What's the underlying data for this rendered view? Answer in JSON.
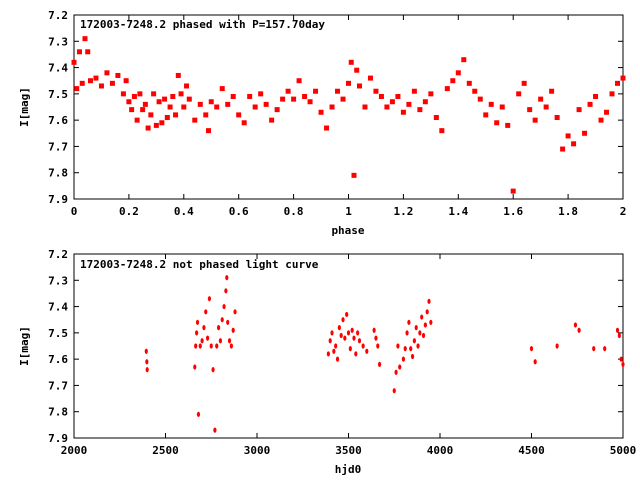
{
  "chart_data": [
    {
      "type": "scatter",
      "title": "172003-7248.2 phased with P=157.70day",
      "xlabel": "phase",
      "ylabel": "I[mag]",
      "xlim": [
        0,
        2
      ],
      "ylim": [
        7.2,
        7.9
      ],
      "y_inverted": true,
      "x_ticks": [
        "0",
        "0.2",
        "0.4",
        "0.6",
        "0.8",
        "1",
        "1.2",
        "1.4",
        "1.6",
        "1.8",
        "2"
      ],
      "y_ticks": [
        "7.2",
        "7.3",
        "7.4",
        "7.5",
        "7.6",
        "7.7",
        "7.8",
        "7.9"
      ],
      "color": "#ff0000",
      "grid": false,
      "points": [
        [
          0.0,
          7.38
        ],
        [
          0.01,
          7.48
        ],
        [
          0.02,
          7.34
        ],
        [
          0.03,
          7.46
        ],
        [
          0.04,
          7.29
        ],
        [
          0.05,
          7.34
        ],
        [
          0.06,
          7.45
        ],
        [
          0.08,
          7.44
        ],
        [
          0.1,
          7.47
        ],
        [
          0.12,
          7.42
        ],
        [
          0.14,
          7.46
        ],
        [
          0.16,
          7.43
        ],
        [
          0.18,
          7.5
        ],
        [
          0.19,
          7.45
        ],
        [
          0.2,
          7.53
        ],
        [
          0.21,
          7.56
        ],
        [
          0.22,
          7.51
        ],
        [
          0.23,
          7.6
        ],
        [
          0.24,
          7.5
        ],
        [
          0.25,
          7.56
        ],
        [
          0.26,
          7.54
        ],
        [
          0.27,
          7.63
        ],
        [
          0.28,
          7.58
        ],
        [
          0.29,
          7.5
        ],
        [
          0.3,
          7.62
        ],
        [
          0.31,
          7.53
        ],
        [
          0.32,
          7.61
        ],
        [
          0.33,
          7.52
        ],
        [
          0.34,
          7.59
        ],
        [
          0.35,
          7.55
        ],
        [
          0.36,
          7.51
        ],
        [
          0.37,
          7.58
        ],
        [
          0.38,
          7.43
        ],
        [
          0.39,
          7.5
        ],
        [
          0.4,
          7.55
        ],
        [
          0.41,
          7.47
        ],
        [
          0.42,
          7.52
        ],
        [
          0.44,
          7.6
        ],
        [
          0.46,
          7.54
        ],
        [
          0.48,
          7.58
        ],
        [
          0.49,
          7.64
        ],
        [
          0.5,
          7.53
        ],
        [
          0.52,
          7.55
        ],
        [
          0.54,
          7.48
        ],
        [
          0.56,
          7.54
        ],
        [
          0.58,
          7.51
        ],
        [
          0.6,
          7.58
        ],
        [
          0.62,
          7.61
        ],
        [
          0.64,
          7.51
        ],
        [
          0.66,
          7.55
        ],
        [
          0.68,
          7.5
        ],
        [
          0.7,
          7.54
        ],
        [
          0.72,
          7.6
        ],
        [
          0.74,
          7.56
        ],
        [
          0.76,
          7.52
        ],
        [
          0.78,
          7.49
        ],
        [
          0.8,
          7.52
        ],
        [
          0.82,
          7.45
        ],
        [
          0.84,
          7.51
        ],
        [
          0.86,
          7.53
        ],
        [
          0.88,
          7.49
        ],
        [
          0.9,
          7.57
        ],
        [
          0.92,
          7.63
        ],
        [
          0.94,
          7.55
        ],
        [
          0.96,
          7.49
        ],
        [
          0.98,
          7.52
        ],
        [
          1.0,
          7.46
        ],
        [
          1.01,
          7.38
        ],
        [
          1.02,
          7.81
        ],
        [
          1.03,
          7.41
        ],
        [
          1.04,
          7.47
        ],
        [
          1.06,
          7.55
        ],
        [
          1.08,
          7.44
        ],
        [
          1.1,
          7.49
        ],
        [
          1.12,
          7.51
        ],
        [
          1.14,
          7.55
        ],
        [
          1.16,
          7.53
        ],
        [
          1.18,
          7.51
        ],
        [
          1.2,
          7.57
        ],
        [
          1.22,
          7.54
        ],
        [
          1.24,
          7.49
        ],
        [
          1.26,
          7.56
        ],
        [
          1.28,
          7.53
        ],
        [
          1.3,
          7.5
        ],
        [
          1.32,
          7.59
        ],
        [
          1.34,
          7.64
        ],
        [
          1.36,
          7.48
        ],
        [
          1.38,
          7.45
        ],
        [
          1.4,
          7.42
        ],
        [
          1.42,
          7.37
        ],
        [
          1.44,
          7.46
        ],
        [
          1.46,
          7.49
        ],
        [
          1.48,
          7.52
        ],
        [
          1.5,
          7.58
        ],
        [
          1.52,
          7.54
        ],
        [
          1.54,
          7.61
        ],
        [
          1.56,
          7.55
        ],
        [
          1.58,
          7.62
        ],
        [
          1.6,
          7.87
        ],
        [
          1.62,
          7.5
        ],
        [
          1.64,
          7.46
        ],
        [
          1.66,
          7.56
        ],
        [
          1.68,
          7.6
        ],
        [
          1.7,
          7.52
        ],
        [
          1.72,
          7.55
        ],
        [
          1.74,
          7.49
        ],
        [
          1.76,
          7.59
        ],
        [
          1.78,
          7.71
        ],
        [
          1.8,
          7.66
        ],
        [
          1.82,
          7.69
        ],
        [
          1.84,
          7.56
        ],
        [
          1.86,
          7.65
        ],
        [
          1.88,
          7.54
        ],
        [
          1.9,
          7.51
        ],
        [
          1.92,
          7.6
        ],
        [
          1.94,
          7.57
        ],
        [
          1.96,
          7.5
        ],
        [
          1.98,
          7.46
        ],
        [
          2.0,
          7.44
        ]
      ]
    },
    {
      "type": "scatter",
      "title": "172003-7248.2 not phased light curve",
      "xlabel": "hjd0",
      "ylabel": "I[mag]",
      "xlim": [
        2000,
        5000
      ],
      "ylim": [
        7.2,
        7.9
      ],
      "y_inverted": true,
      "x_ticks": [
        "2000",
        "2500",
        "3000",
        "3500",
        "4000",
        "4500",
        "5000"
      ],
      "y_ticks": [
        "7.2",
        "7.3",
        "7.4",
        "7.5",
        "7.6",
        "7.7",
        "7.8",
        "7.9"
      ],
      "color": "#ff0000",
      "grid": false,
      "points": [
        [
          2395,
          7.57
        ],
        [
          2398,
          7.61
        ],
        [
          2400,
          7.64
        ],
        [
          2660,
          7.63
        ],
        [
          2665,
          7.55
        ],
        [
          2670,
          7.5
        ],
        [
          2675,
          7.46
        ],
        [
          2680,
          7.81
        ],
        [
          2690,
          7.55
        ],
        [
          2700,
          7.53
        ],
        [
          2710,
          7.48
        ],
        [
          2720,
          7.42
        ],
        [
          2730,
          7.52
        ],
        [
          2740,
          7.37
        ],
        [
          2750,
          7.55
        ],
        [
          2760,
          7.64
        ],
        [
          2770,
          7.87
        ],
        [
          2780,
          7.55
        ],
        [
          2790,
          7.48
        ],
        [
          2800,
          7.53
        ],
        [
          2810,
          7.45
        ],
        [
          2820,
          7.4
        ],
        [
          2830,
          7.34
        ],
        [
          2835,
          7.29
        ],
        [
          2840,
          7.46
        ],
        [
          2850,
          7.53
        ],
        [
          2860,
          7.55
        ],
        [
          2870,
          7.49
        ],
        [
          2880,
          7.42
        ],
        [
          3390,
          7.58
        ],
        [
          3400,
          7.53
        ],
        [
          3410,
          7.5
        ],
        [
          3420,
          7.57
        ],
        [
          3430,
          7.55
        ],
        [
          3440,
          7.6
        ],
        [
          3450,
          7.48
        ],
        [
          3460,
          7.51
        ],
        [
          3470,
          7.45
        ],
        [
          3480,
          7.52
        ],
        [
          3490,
          7.43
        ],
        [
          3500,
          7.5
        ],
        [
          3510,
          7.56
        ],
        [
          3520,
          7.49
        ],
        [
          3530,
          7.52
        ],
        [
          3540,
          7.58
        ],
        [
          3550,
          7.5
        ],
        [
          3560,
          7.53
        ],
        [
          3580,
          7.55
        ],
        [
          3600,
          7.57
        ],
        [
          3640,
          7.49
        ],
        [
          3650,
          7.52
        ],
        [
          3660,
          7.55
        ],
        [
          3670,
          7.62
        ],
        [
          3750,
          7.72
        ],
        [
          3760,
          7.65
        ],
        [
          3770,
          7.55
        ],
        [
          3780,
          7.63
        ],
        [
          3800,
          7.6
        ],
        [
          3810,
          7.56
        ],
        [
          3820,
          7.5
        ],
        [
          3830,
          7.46
        ],
        [
          3840,
          7.56
        ],
        [
          3850,
          7.59
        ],
        [
          3860,
          7.53
        ],
        [
          3870,
          7.48
        ],
        [
          3880,
          7.55
        ],
        [
          3890,
          7.5
        ],
        [
          3900,
          7.44
        ],
        [
          3910,
          7.51
        ],
        [
          3920,
          7.47
        ],
        [
          3930,
          7.42
        ],
        [
          3940,
          7.38
        ],
        [
          3950,
          7.46
        ],
        [
          4500,
          7.56
        ],
        [
          4520,
          7.61
        ],
        [
          4640,
          7.55
        ],
        [
          4740,
          7.47
        ],
        [
          4760,
          7.49
        ],
        [
          4840,
          7.56
        ],
        [
          4900,
          7.56
        ],
        [
          4970,
          7.49
        ],
        [
          4980,
          7.51
        ],
        [
          4990,
          7.6
        ],
        [
          5000,
          7.62
        ]
      ]
    }
  ]
}
